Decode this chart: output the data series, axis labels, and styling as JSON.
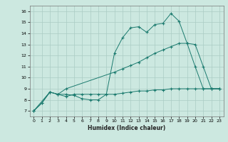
{
  "title": "",
  "xlabel": "Humidex (Indice chaleur)",
  "bg_color": "#cce8e0",
  "grid_color": "#aaccc4",
  "line_color": "#1a7a6e",
  "xlim": [
    -0.5,
    23.5
  ],
  "ylim": [
    6.5,
    16.5
  ],
  "xticks": [
    0,
    1,
    2,
    3,
    4,
    5,
    6,
    7,
    8,
    9,
    10,
    11,
    12,
    13,
    14,
    15,
    16,
    17,
    18,
    19,
    20,
    21,
    22,
    23
  ],
  "yticks": [
    7,
    8,
    9,
    10,
    11,
    12,
    13,
    14,
    15,
    16
  ],
  "line1_x": [
    0,
    1,
    2,
    3,
    4,
    5,
    6,
    7,
    8,
    9,
    10,
    11,
    12,
    13,
    14,
    15,
    16,
    17,
    18,
    19,
    20,
    21,
    22,
    23
  ],
  "line1_y": [
    7.0,
    7.7,
    8.7,
    8.5,
    8.5,
    8.4,
    8.1,
    8.0,
    8.0,
    8.5,
    12.2,
    13.6,
    14.5,
    14.6,
    14.1,
    14.8,
    14.9,
    15.8,
    15.1,
    13.1,
    11.0,
    9.0,
    9.0,
    9.0
  ],
  "line2_x": [
    0,
    1,
    2,
    3,
    4,
    5,
    6,
    7,
    8,
    9,
    10,
    11,
    12,
    13,
    14,
    15,
    16,
    17,
    18,
    19,
    20,
    21,
    22,
    23
  ],
  "line2_y": [
    7.0,
    7.7,
    8.7,
    8.5,
    8.3,
    8.5,
    8.5,
    8.5,
    8.5,
    8.5,
    8.5,
    8.6,
    8.7,
    8.8,
    8.8,
    8.9,
    8.9,
    9.0,
    9.0,
    9.0,
    9.0,
    9.0,
    9.0,
    9.0
  ],
  "line3_x": [
    0,
    2,
    3,
    4,
    10,
    11,
    12,
    13,
    14,
    15,
    16,
    17,
    18,
    19,
    20,
    21,
    22,
    23
  ],
  "line3_y": [
    7.0,
    8.7,
    8.5,
    9.0,
    10.5,
    10.8,
    11.1,
    11.4,
    11.8,
    12.2,
    12.5,
    12.8,
    13.1,
    13.1,
    13.0,
    11.0,
    9.0,
    9.0
  ]
}
